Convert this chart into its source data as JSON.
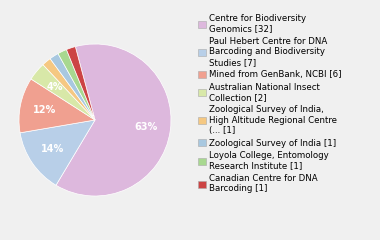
{
  "labels": [
    "Centre for Biodiversity\nGenomics [32]",
    "Paul Hebert Centre for DNA\nBarcoding and Biodiversity\nStudies [7]",
    "Mined from GenBank, NCBI [6]",
    "Australian National Insect\nCollection [2]",
    "Zoological Survey of India,\nHigh Altitude Regional Centre\n(... [1]",
    "Zoological Survey of India [1]",
    "Loyola College, Entomology\nResearch Institute [1]",
    "Canadian Centre for DNA\nBarcoding [1]"
  ],
  "values": [
    32,
    7,
    6,
    2,
    1,
    1,
    1,
    1
  ],
  "colors": [
    "#ddb8dd",
    "#b8cfe8",
    "#f0a090",
    "#d8e8a8",
    "#f5c882",
    "#a8c8e0",
    "#a8d890",
    "#cc4444"
  ],
  "background_color": "#f0f0f0",
  "text_color": "#ffffff",
  "startangle": 105,
  "legend_fontsize": 6.2,
  "pct_fontsize": 7.0
}
